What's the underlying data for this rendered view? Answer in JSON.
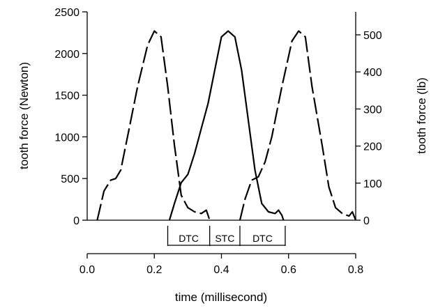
{
  "chart_data": {
    "type": "line",
    "xlabel": "time (millisecond)",
    "ylabel_left": "tooth force (Newton)",
    "ylabel_right": "tooth force (lb)",
    "xlim": [
      0.0,
      0.8
    ],
    "ylim_left": [
      0,
      2500
    ],
    "ylim_right_lb": [
      0,
      562
    ],
    "x_ticks": [
      "0.0",
      "0.2",
      "0.4",
      "0.6",
      "0.8"
    ],
    "y_ticks_left": [
      "0",
      "500",
      "1000",
      "1500",
      "2000",
      "2500"
    ],
    "y_ticks_right": [
      "0",
      "100",
      "200",
      "300",
      "400",
      "500"
    ],
    "grid": false,
    "series": [
      {
        "style": "dashed",
        "x": [
          0.03,
          0.05,
          0.07,
          0.085,
          0.1,
          0.12,
          0.15,
          0.18,
          0.2,
          0.22,
          0.24,
          0.26,
          0.28,
          0.3,
          0.32,
          0.34,
          0.355,
          0.365
        ],
        "y": [
          0,
          350,
          480,
          500,
          600,
          1000,
          1600,
          2100,
          2270,
          2200,
          1600,
          900,
          300,
          150,
          100,
          80,
          120,
          0
        ]
      },
      {
        "style": "solid",
        "x": [
          0.245,
          0.26,
          0.28,
          0.3,
          0.32,
          0.34,
          0.36,
          0.38,
          0.4,
          0.42,
          0.44,
          0.46,
          0.48,
          0.5,
          0.52,
          0.54,
          0.56,
          0.57,
          0.58,
          0.585
        ],
        "y": [
          0,
          200,
          450,
          550,
          800,
          1100,
          1400,
          1800,
          2200,
          2270,
          2200,
          1800,
          1200,
          600,
          200,
          100,
          80,
          120,
          60,
          0
        ]
      },
      {
        "style": "dashed",
        "x": [
          0.455,
          0.47,
          0.49,
          0.51,
          0.53,
          0.55,
          0.58,
          0.61,
          0.63,
          0.65,
          0.67,
          0.7,
          0.72,
          0.74,
          0.76,
          0.78,
          0.79,
          0.8
        ],
        "y": [
          0,
          250,
          480,
          520,
          700,
          1000,
          1600,
          2150,
          2270,
          2200,
          1600,
          900,
          400,
          150,
          80,
          50,
          100,
          0
        ]
      }
    ],
    "segments": [
      {
        "label": "DTC",
        "x_start": 0.24,
        "x_end": 0.365
      },
      {
        "label": "STC",
        "x_start": 0.365,
        "x_end": 0.455
      },
      {
        "label": "DTC",
        "x_start": 0.455,
        "x_end": 0.59
      }
    ]
  }
}
